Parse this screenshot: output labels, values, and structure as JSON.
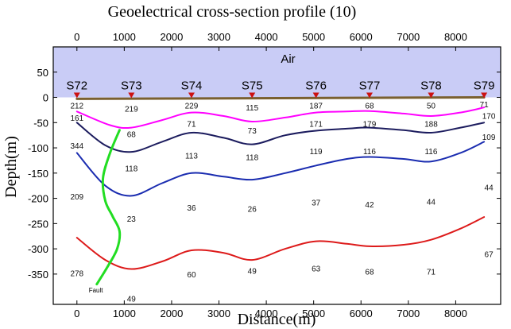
{
  "chart_data": {
    "type": "line",
    "title": "Geoelectrical cross-section profile (10)",
    "xlabel": "Distance(m)",
    "ylabel": "Depth(m)",
    "xlim": [
      -500,
      8950
    ],
    "ylim": [
      -410,
      100
    ],
    "top_axis": true,
    "x_ticks": [
      0,
      1000,
      2000,
      3000,
      4000,
      5000,
      6000,
      7000,
      8000
    ],
    "y_ticks": [
      50,
      0,
      -50,
      -100,
      -150,
      -200,
      -250,
      -300,
      -350
    ],
    "air": {
      "label": "Air",
      "ymin": 0,
      "ymax": 100,
      "color": "#c9ccf6"
    },
    "stations": [
      {
        "name": "S72",
        "x": 0
      },
      {
        "name": "S73",
        "x": 1150
      },
      {
        "name": "S74",
        "x": 2420
      },
      {
        "name": "S75",
        "x": 3700
      },
      {
        "name": "S76",
        "x": 5050
      },
      {
        "name": "S77",
        "x": 6180
      },
      {
        "name": "S78",
        "x": 7480
      },
      {
        "name": "S79",
        "x": 8600
      }
    ],
    "series": [
      {
        "color": "#7a6030",
        "x": [
          0,
          8600
        ],
        "y": [
          -3,
          0
        ]
      },
      {
        "color": "#ff00ff",
        "x": [
          0,
          700,
          1150,
          1800,
          2420,
          3100,
          3700,
          4400,
          5050,
          5700,
          6180,
          6900,
          7480,
          8100,
          8600
        ],
        "y": [
          -28,
          -55,
          -60,
          -45,
          -30,
          -37,
          -48,
          -40,
          -30,
          -28,
          -27,
          -32,
          -37,
          -30,
          -20
        ]
      },
      {
        "color": "#1c1c5e",
        "x": [
          0,
          600,
          1150,
          1800,
          2420,
          3100,
          3700,
          4400,
          5050,
          5700,
          6180,
          6900,
          7480,
          8100,
          8600
        ],
        "y": [
          -50,
          -95,
          -108,
          -88,
          -70,
          -80,
          -93,
          -75,
          -66,
          -62,
          -60,
          -65,
          -70,
          -60,
          -50
        ]
      },
      {
        "color": "#1a2cb0",
        "x": [
          0,
          600,
          1150,
          1800,
          2420,
          3100,
          3700,
          4400,
          5050,
          5700,
          6180,
          6900,
          7480,
          8100,
          8600
        ],
        "y": [
          -110,
          -175,
          -195,
          -170,
          -150,
          -157,
          -163,
          -150,
          -135,
          -122,
          -118,
          -122,
          -127,
          -110,
          -88
        ]
      },
      {
        "color": "#dd1a1a",
        "x": [
          0,
          600,
          1150,
          1800,
          2420,
          3100,
          3700,
          4400,
          5050,
          5700,
          6180,
          6900,
          7480,
          8100,
          8600
        ],
        "y": [
          -278,
          -322,
          -340,
          -325,
          -303,
          -308,
          -322,
          -300,
          -285,
          -290,
          -295,
          -292,
          -282,
          -260,
          -237
        ]
      },
      {
        "color": "#22dd22",
        "x": [
          900,
          700,
          550,
          600,
          750,
          900,
          850,
          650,
          420
        ],
        "y": [
          -65,
          -110,
          -160,
          -205,
          -235,
          -265,
          -300,
          -335,
          -370
        ]
      }
    ],
    "resistivity_labels": [
      {
        "text": "212",
        "x": 0,
        "y": -16
      },
      {
        "text": "219",
        "x": 1150,
        "y": -22
      },
      {
        "text": "229",
        "x": 2420,
        "y": -16
      },
      {
        "text": "115",
        "x": 3700,
        "y": -20
      },
      {
        "text": "187",
        "x": 5050,
        "y": -16
      },
      {
        "text": "68",
        "x": 6180,
        "y": -16
      },
      {
        "text": "50",
        "x": 7480,
        "y": -16
      },
      {
        "text": "71",
        "x": 8600,
        "y": -13
      },
      {
        "text": "161",
        "x": 0,
        "y": -40
      },
      {
        "text": "68",
        "x": 1150,
        "y": -72
      },
      {
        "text": "71",
        "x": 2420,
        "y": -52
      },
      {
        "text": "73",
        "x": 3700,
        "y": -65
      },
      {
        "text": "171",
        "x": 5050,
        "y": -52
      },
      {
        "text": "179",
        "x": 6180,
        "y": -52
      },
      {
        "text": "188",
        "x": 7480,
        "y": -52
      },
      {
        "text": "170",
        "x": 8700,
        "y": -36
      },
      {
        "text": "344",
        "x": 0,
        "y": -95
      },
      {
        "text": "118",
        "x": 1150,
        "y": -140
      },
      {
        "text": "113",
        "x": 2420,
        "y": -115
      },
      {
        "text": "118",
        "x": 3700,
        "y": -118
      },
      {
        "text": "119",
        "x": 5050,
        "y": -106
      },
      {
        "text": "116",
        "x": 6180,
        "y": -106
      },
      {
        "text": "116",
        "x": 7480,
        "y": -106
      },
      {
        "text": "109",
        "x": 8700,
        "y": -78
      },
      {
        "text": "209",
        "x": 0,
        "y": -196
      },
      {
        "text": "23",
        "x": 1150,
        "y": -240
      },
      {
        "text": "36",
        "x": 2420,
        "y": -218
      },
      {
        "text": "26",
        "x": 3700,
        "y": -220
      },
      {
        "text": "37",
        "x": 5050,
        "y": -208
      },
      {
        "text": "42",
        "x": 6180,
        "y": -212
      },
      {
        "text": "44",
        "x": 7480,
        "y": -206
      },
      {
        "text": "44",
        "x": 8700,
        "y": -178
      },
      {
        "text": "278",
        "x": 0,
        "y": -348
      },
      {
        "text": "49",
        "x": 1150,
        "y": -398
      },
      {
        "text": "60",
        "x": 2420,
        "y": -350
      },
      {
        "text": "49",
        "x": 3700,
        "y": -343
      },
      {
        "text": "63",
        "x": 5050,
        "y": -338
      },
      {
        "text": "68",
        "x": 6180,
        "y": -345
      },
      {
        "text": "71",
        "x": 7480,
        "y": -345
      },
      {
        "text": "67",
        "x": 8700,
        "y": -310
      }
    ],
    "annotations": [
      {
        "text": "Fault",
        "x": 400,
        "y": -380
      }
    ],
    "grid": false,
    "legend": "none"
  }
}
